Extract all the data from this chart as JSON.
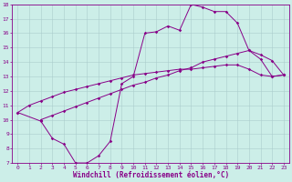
{
  "xlabel": "Windchill (Refroidissement éolien,°C)",
  "bg_color": "#cceee8",
  "line_color": "#880088",
  "grid_color": "#aacccc",
  "line1_x": [
    0,
    1,
    2,
    3,
    4,
    5,
    6,
    7,
    8,
    9,
    10,
    11,
    12,
    13,
    14,
    15,
    16,
    17,
    18,
    19,
    20,
    21,
    22,
    23
  ],
  "line1_y": [
    10.5,
    11.0,
    11.3,
    11.6,
    11.9,
    12.1,
    12.3,
    12.5,
    12.7,
    12.9,
    13.1,
    13.2,
    13.3,
    13.4,
    13.5,
    13.5,
    13.6,
    13.7,
    13.8,
    13.8,
    13.5,
    13.1,
    13.0,
    13.1
  ],
  "line2_x": [
    0,
    2,
    3,
    4,
    5,
    6,
    7,
    8,
    9,
    10,
    11,
    12,
    13,
    14,
    15,
    16,
    17,
    18,
    19,
    20,
    21,
    22,
    23
  ],
  "line2_y": [
    10.5,
    9.9,
    8.7,
    8.3,
    7.0,
    7.0,
    7.5,
    8.5,
    12.5,
    13.0,
    16.0,
    16.1,
    16.5,
    16.2,
    18.0,
    17.8,
    17.5,
    17.5,
    16.7,
    14.8,
    14.2,
    13.0,
    13.1
  ],
  "line3_x": [
    2,
    3,
    4,
    5,
    6,
    7,
    8,
    9,
    10,
    11,
    12,
    13,
    14,
    15,
    16,
    17,
    18,
    19,
    20,
    21,
    22,
    23
  ],
  "line3_y": [
    10.0,
    10.3,
    10.6,
    10.9,
    11.2,
    11.5,
    11.8,
    12.1,
    12.4,
    12.6,
    12.9,
    13.1,
    13.4,
    13.6,
    14.0,
    14.2,
    14.4,
    14.6,
    14.8,
    14.5,
    14.1,
    13.1
  ],
  "xlim": [
    -0.5,
    23.5
  ],
  "ylim": [
    7,
    18
  ],
  "xticks": [
    0,
    1,
    2,
    3,
    4,
    5,
    6,
    7,
    8,
    9,
    10,
    11,
    12,
    13,
    14,
    15,
    16,
    17,
    18,
    19,
    20,
    21,
    22,
    23
  ],
  "yticks": [
    7,
    8,
    9,
    10,
    11,
    12,
    13,
    14,
    15,
    16,
    17,
    18
  ],
  "tick_fontsize": 4.5,
  "xlabel_fontsize": 5.5,
  "marker": "D",
  "markersize": 1.8,
  "linewidth": 0.7
}
